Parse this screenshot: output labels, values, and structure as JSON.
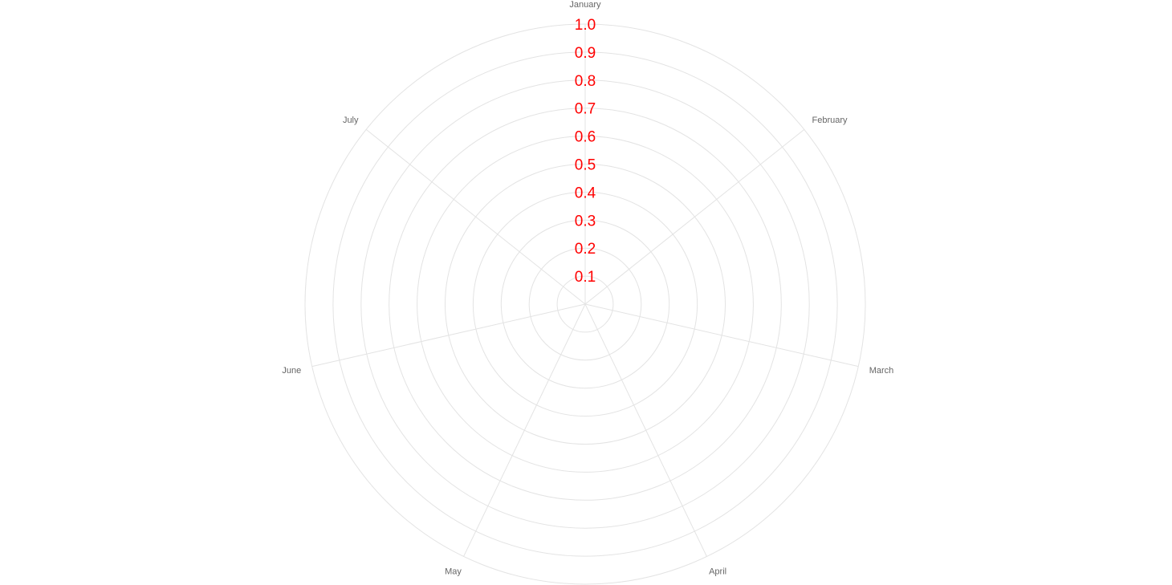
{
  "chart_data": {
    "type": "radar",
    "categories": [
      "January",
      "February",
      "March",
      "April",
      "May",
      "June",
      "July"
    ],
    "series": [],
    "r_ticks": [
      "0.1",
      "0.2",
      "0.3",
      "0.4",
      "0.5",
      "0.6",
      "0.7",
      "0.8",
      "0.9",
      "1.0"
    ],
    "rlim": [
      0,
      1.0
    ],
    "grid": true,
    "tick_color": "#ff0000",
    "grid_color": "#e3e3e3",
    "label_color": "#666666"
  }
}
